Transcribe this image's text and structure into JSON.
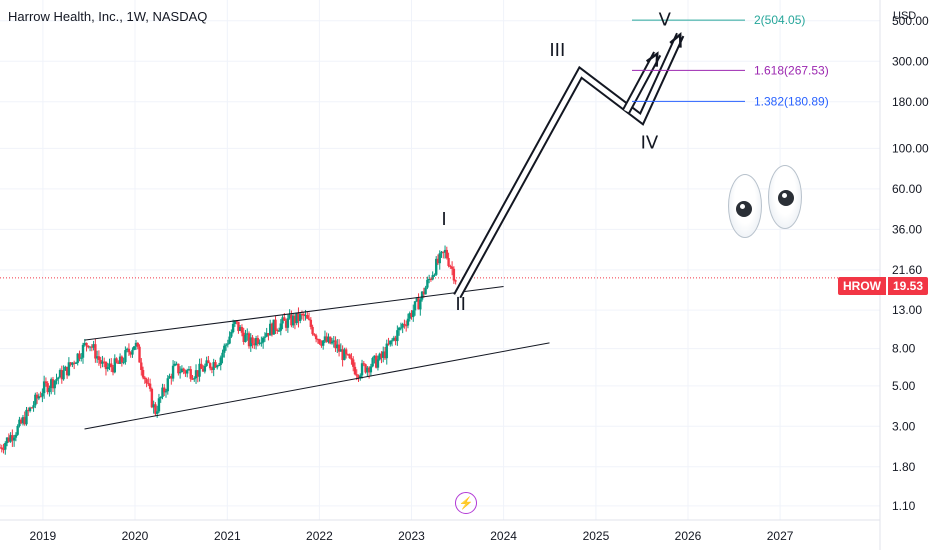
{
  "header": {
    "title": "Harrow Health, Inc., 1W, NASDAQ"
  },
  "axis": {
    "currency": "USD"
  },
  "ticker_badge": {
    "symbol": "HROW",
    "price": "19.53"
  },
  "colors": {
    "up": "#089981",
    "down": "#f23645",
    "fib_2": "#26a69a",
    "fib_1618": "#9c27b0",
    "fib_1382": "#2962ff",
    "price_line": "#f23645"
  },
  "chart_data": {
    "type": "candlestick",
    "title": "Harrow Health, Inc., 1W, NASDAQ",
    "y_scale": "log",
    "ylim": [
      0.92,
      650
    ],
    "xlim": [
      "2018-07-15",
      "2028-02-01"
    ],
    "x_ticks": [
      "2019",
      "2020",
      "2021",
      "2022",
      "2023",
      "2024",
      "2025",
      "2026",
      "2027"
    ],
    "y_ticks": [
      "500.00",
      "300.00",
      "180.00",
      "100.00",
      "60.00",
      "36.00",
      "21.60",
      "13.00",
      "8.00",
      "5.00",
      "3.00",
      "1.80",
      "1.10"
    ],
    "last_price": 19.53,
    "price_path": [
      [
        "2018-07-15",
        2.3
      ],
      [
        "2018-10-01",
        3.0
      ],
      [
        "2019-01-01",
        4.8
      ],
      [
        "2019-04-01",
        6.0
      ],
      [
        "2019-07-01",
        8.8
      ],
      [
        "2019-09-01",
        6.2
      ],
      [
        "2019-11-01",
        6.6
      ],
      [
        "2020-01-01",
        8.6
      ],
      [
        "2020-03-20",
        3.6
      ],
      [
        "2020-06-01",
        6.2
      ],
      [
        "2020-09-01",
        5.9
      ],
      [
        "2020-12-01",
        7.0
      ],
      [
        "2021-02-01",
        11.0
      ],
      [
        "2021-04-01",
        8.5
      ],
      [
        "2021-07-01",
        10.5
      ],
      [
        "2021-11-01",
        12.0
      ],
      [
        "2022-01-01",
        9.0
      ],
      [
        "2022-03-01",
        8.4
      ],
      [
        "2022-06-01",
        6.0
      ],
      [
        "2022-09-01",
        7.0
      ],
      [
        "2022-12-01",
        11.0
      ],
      [
        "2023-02-01",
        14.5
      ],
      [
        "2023-04-01",
        22.0
      ],
      [
        "2023-05-15",
        27.0
      ],
      [
        "2023-06-10",
        22.0
      ],
      [
        "2023-06-25",
        19.53
      ]
    ],
    "trendlines": [
      {
        "name": "channel-upper",
        "points": [
          [
            "2019-06-15",
            8.9
          ],
          [
            "2024-01-01",
            17.5
          ]
        ]
      },
      {
        "name": "channel-lower",
        "points": [
          [
            "2019-06-15",
            2.9
          ],
          [
            "2024-07-01",
            8.6
          ]
        ]
      }
    ],
    "projection": [
      [
        "2023-07-01",
        15.5
      ],
      [
        "2024-11-01",
        260
      ],
      [
        "2025-07-01",
        145
      ],
      [
        "2025-12-01",
        420
      ]
    ],
    "projection_alt": [
      [
        "2025-05-01",
        160
      ],
      [
        "2025-09-01",
        330
      ]
    ],
    "wave_labels": [
      {
        "text": "I",
        "x": "2023-05-10",
        "y": 38
      },
      {
        "text": "II",
        "x": "2023-07-15",
        "y": 13
      },
      {
        "text": "III",
        "x": "2024-08-01",
        "y": 320
      },
      {
        "text": "IV",
        "x": "2025-08-01",
        "y": 100
      },
      {
        "text": "V",
        "x": "2025-10-01",
        "y": 470
      }
    ],
    "fib_levels": [
      {
        "label": "2(504.05)",
        "value": 504.05
      },
      {
        "label": "1.618(267.53)",
        "value": 267.53
      },
      {
        "label": "1.382(180.89)",
        "value": 180.89
      }
    ]
  }
}
